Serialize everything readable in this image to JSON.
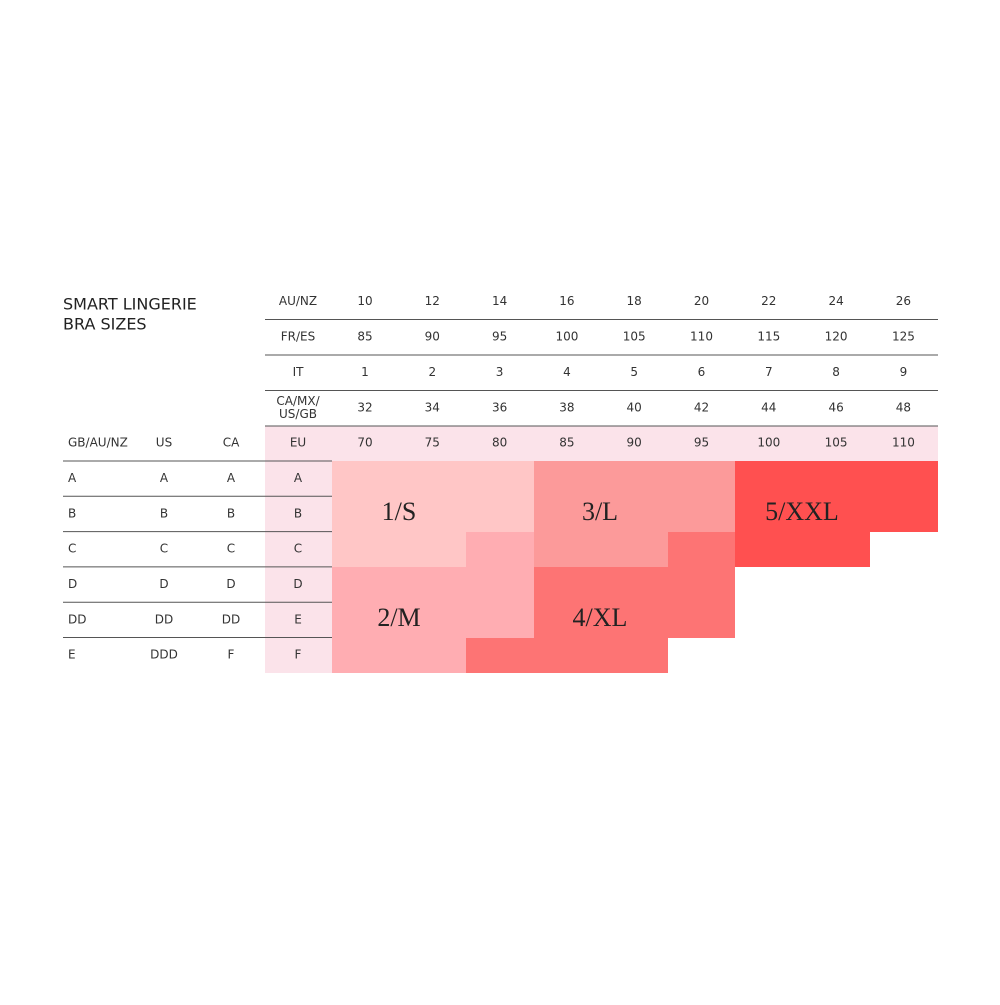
{
  "title": [
    "SMART LINGERIE",
    "BRA SIZES"
  ],
  "header_rows": [
    {
      "label": [
        "AU/NZ"
      ],
      "values": [
        10,
        12,
        14,
        16,
        18,
        20,
        22,
        24,
        26
      ]
    },
    {
      "label": [
        "FR/ES"
      ],
      "values": [
        85,
        90,
        95,
        100,
        105,
        110,
        115,
        120,
        125
      ]
    },
    {
      "label": [
        "IT"
      ],
      "values": [
        1,
        2,
        3,
        4,
        5,
        6,
        7,
        8,
        9
      ]
    },
    {
      "label": [
        "CA/MX/",
        "US/GB"
      ],
      "values": [
        32,
        34,
        36,
        38,
        40,
        42,
        44,
        46,
        48
      ]
    }
  ],
  "eu_row": {
    "label": "EU",
    "values": [
      70,
      75,
      80,
      85,
      90,
      95,
      100,
      105,
      110
    ]
  },
  "columns": [
    "GB/AU/NZ",
    "US",
    "CA"
  ],
  "cup_rows": [
    [
      "A",
      "A",
      "A",
      "A"
    ],
    [
      "B",
      "B",
      "B",
      "B"
    ],
    [
      "C",
      "C",
      "C",
      "C"
    ],
    [
      "D",
      "D",
      "D",
      "D"
    ],
    [
      "DD",
      "DD",
      "DD",
      "E"
    ],
    [
      "E",
      "DDD",
      "F",
      "F"
    ]
  ],
  "sizes": [
    "1/S",
    "2/M",
    "3/L",
    "4/XL",
    "5/XXL"
  ]
}
